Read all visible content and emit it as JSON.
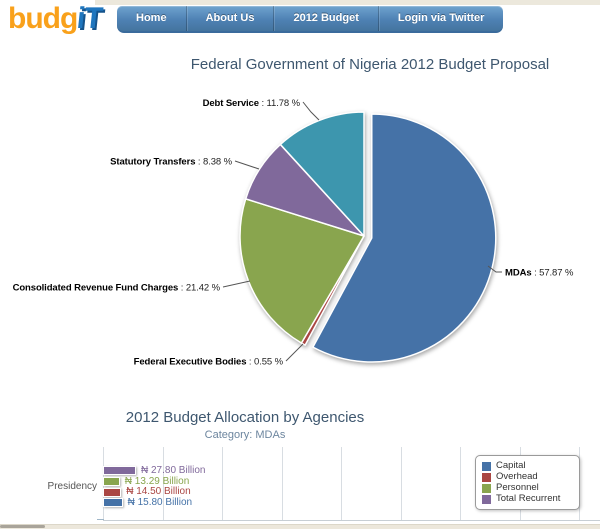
{
  "header": {
    "logo_budg": "budg",
    "logo_it": "iT",
    "nav_items": [
      {
        "label": "Home"
      },
      {
        "label": "About Us"
      },
      {
        "label": "2012 Budget"
      },
      {
        "label": "Login via Twitter"
      }
    ]
  },
  "chart_data": [
    {
      "type": "pie",
      "title": "Federal Government of Nigeria 2012 Budget Proposal",
      "slices": [
        {
          "label": "MDAs",
          "value": 57.87,
          "color": "#4572A7",
          "sliced": true
        },
        {
          "label": "Federal Executive Bodies",
          "value": 0.55,
          "color": "#AA4643",
          "sliced": false
        },
        {
          "label": "Consolidated Revenue Fund Charges",
          "value": 21.42,
          "color": "#89A54E",
          "sliced": false
        },
        {
          "label": "Statutory Transfers",
          "value": 8.38,
          "color": "#80699B",
          "sliced": false
        },
        {
          "label": "Debt Service",
          "value": 11.78,
          "color": "#3D96AE",
          "sliced": false
        }
      ],
      "value_suffix": " %",
      "label_separator": " : "
    },
    {
      "type": "bar",
      "title": "2012 Budget Allocation by Agencies",
      "subtitle": "Category: MDAs",
      "categories": [
        "Presidency"
      ],
      "series": [
        {
          "name": "Total Recurrent",
          "color": "#80699B",
          "values": [
            27.8
          ],
          "labels": [
            "₦ 27.80 Billion"
          ]
        },
        {
          "name": "Personnel",
          "color": "#89A54E",
          "values": [
            13.29
          ],
          "labels": [
            "₦ 13.29 Billion"
          ]
        },
        {
          "name": "Overhead",
          "color": "#AA4643",
          "values": [
            14.5
          ],
          "labels": [
            "₦ 14.50 Billion"
          ]
        },
        {
          "name": "Capital",
          "color": "#4572A7",
          "values": [
            15.8
          ],
          "labels": [
            "₦ 15.80 Billion"
          ]
        }
      ],
      "legend": {
        "position": "top-right",
        "items": [
          {
            "name": "Capital",
            "color": "#4572A7"
          },
          {
            "name": "Overhead",
            "color": "#AA4643"
          },
          {
            "name": "Personnel",
            "color": "#89A54E"
          },
          {
            "name": "Total Recurrent",
            "color": "#80699B"
          }
        ]
      },
      "currency_symbol": "₦",
      "unit": "Billion",
      "grid": true
    }
  ]
}
